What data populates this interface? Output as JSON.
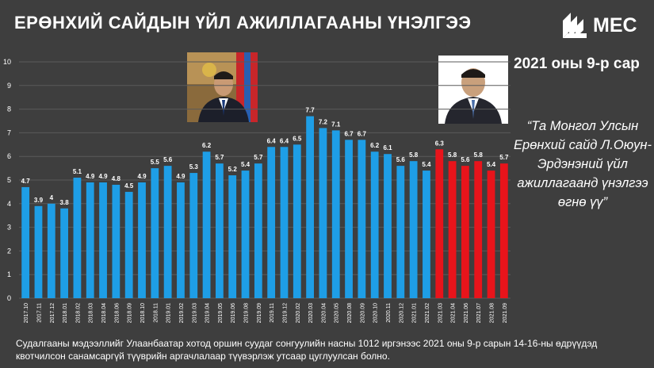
{
  "header": {
    "title": "ЕРӨНХИЙ САЙДЫН ҮЙЛ АЖИЛЛАГААНЫ ҮНЭЛГЭЭ",
    "logo_text": "MEC",
    "date_label": "2021 оны 9-р сар"
  },
  "quote": {
    "text": "“Та Монгол Улсын Ерөнхий сайд Л.Оюун-Эрдэнэний үйл ажиллагаанд үнэлгээ өгнө үү”"
  },
  "footnote": {
    "text": "Судалгааны мэдээллийг Улаанбаатар хотод оршин суудаг сонгуулийн насны 1012 иргэнээс 2021 оны 9-р сарын 14-16-ны өдрүүдэд квотчилсон санамсаргүй түүврийн аргачлалаар түүвэрлэж утсаар цуглуулсан болно."
  },
  "colors": {
    "background": "#3e3e3e",
    "bar_blue": "#1e9ee6",
    "bar_red": "#e8141b",
    "grid": "#5a5a5a",
    "text": "#ffffff"
  },
  "photos": [
    {
      "name": "portrait-left-icon"
    },
    {
      "name": "portrait-right-icon"
    }
  ],
  "chart_data": {
    "type": "bar",
    "title": "",
    "xlabel": "",
    "ylabel": "",
    "ylim": [
      0,
      10
    ],
    "yticks": [
      0,
      1,
      2,
      3,
      4,
      5,
      6,
      7,
      8,
      9,
      10
    ],
    "grid": true,
    "categories": [
      "2017.10",
      "2017.11",
      "2017.12",
      "2018.01",
      "2018.02",
      "2018.03",
      "2018.04",
      "2018.06",
      "2018.09",
      "2018.10",
      "2018.11",
      "2019.01",
      "2019.02",
      "2019.03",
      "2019.04",
      "2019.05",
      "2019.06",
      "2019.08",
      "2019.09",
      "2019.11",
      "2019.12",
      "2020.02",
      "2020.03",
      "2020.04",
      "2020.05",
      "2020.08",
      "2020.09",
      "2020.10",
      "2020.11",
      "2020.12",
      "2021.01",
      "2021.02",
      "2021.03",
      "2021.04",
      "2021.06",
      "2021.07",
      "2021.08",
      "2021.09"
    ],
    "values": [
      4.7,
      3.9,
      4,
      3.8,
      5.1,
      4.9,
      4.9,
      4.8,
      4.5,
      4.9,
      5.5,
      5.6,
      4.9,
      5.3,
      6.2,
      5.7,
      5.2,
      5.4,
      5.7,
      6.4,
      6.4,
      6.5,
      7.7,
      7.2,
      7.1,
      6.7,
      6.7,
      6.2,
      6.1,
      5.6,
      5.8,
      5.4,
      6.3,
      5.8,
      5.6,
      5.8,
      5.4,
      5.7
    ],
    "value_labels": [
      "4.7",
      "3.9",
      "4",
      "3.8",
      "5.1",
      "4.9",
      "4.9",
      "4.8",
      "4.5",
      "4.9",
      "5.5",
      "5.6",
      "4.9",
      "5.3",
      "6.2",
      "5.7",
      "5.2",
      "5.4",
      "5.7",
      "6.4",
      "6.4",
      "6.5",
      "7.7",
      "7.2",
      "7.1",
      "6.7",
      "6.7",
      "6.2",
      "6.1",
      "5.6",
      "5.8",
      "5.4",
      "6.3",
      "5.8",
      "5.6",
      "5.8",
      "5.4",
      "5.7"
    ],
    "highlight_from_index": 32
  }
}
